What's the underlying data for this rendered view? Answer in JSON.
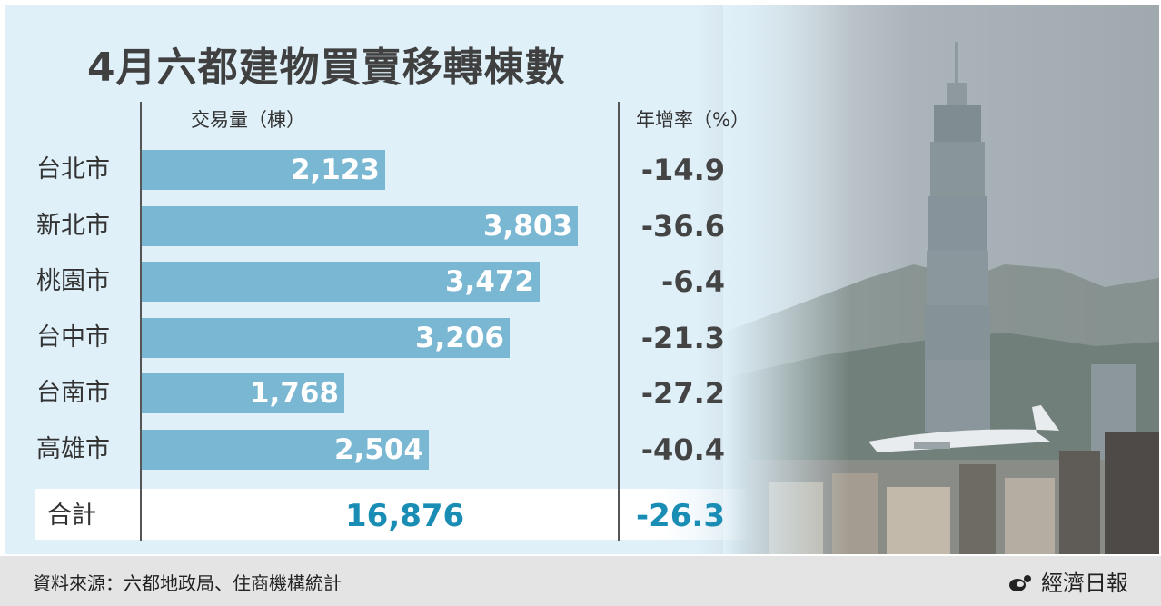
{
  "title": "4月六都建物買賣移轉棟數",
  "headers": {
    "volume": "交易量（棟）",
    "yoy": "年增率（%）"
  },
  "chart_data": {
    "type": "bar",
    "orientation": "horizontal",
    "categories": [
      "台北市",
      "新北市",
      "桃園市",
      "台中市",
      "台南市",
      "高雄市"
    ],
    "values": [
      2123,
      3803,
      3472,
      3206,
      1768,
      2504
    ],
    "value_labels": [
      "2,123",
      "3,803",
      "3,472",
      "3,206",
      "1,768",
      "2,504"
    ],
    "yoy": [
      "-14.9",
      "-36.6",
      "-6.4",
      "-21.3",
      "-27.2",
      "-40.4"
    ],
    "total_label": "合計",
    "total_value": "16,876",
    "total_yoy": "-26.3",
    "bar_color": "#7ab7d2",
    "total_color": "#1a8db5"
  },
  "footer": {
    "source": "資料來源：六都地政局、住商機構統計",
    "logo": "經濟日報"
  }
}
